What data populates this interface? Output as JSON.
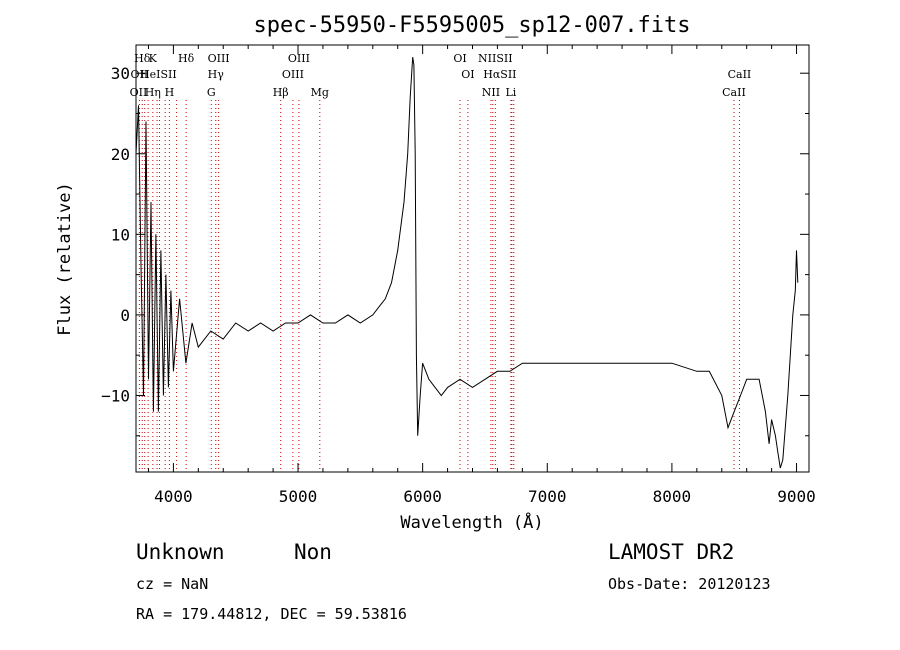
{
  "chart_data": {
    "type": "line",
    "title": "spec-55950-F5595005_sp12-007.fits",
    "xlabel": "Wavelength (Å)",
    "ylabel": "Flux (relative)",
    "xlim": [
      3700,
      9100
    ],
    "ylim": [
      -19.5,
      33.5
    ],
    "x_ticks": [
      4000,
      5000,
      6000,
      7000,
      8000,
      9000
    ],
    "y_ticks": [
      -10,
      0,
      10,
      20,
      30
    ],
    "grid": false,
    "line_color": "#000000",
    "marker_color": "#cc0000",
    "series": [
      {
        "x": [
          3700,
          3720,
          3740,
          3760,
          3780,
          3800,
          3820,
          3840,
          3860,
          3880,
          3900,
          3920,
          3940,
          3960,
          3980,
          4000,
          4050,
          4100,
          4150,
          4200,
          4300,
          4400,
          4500,
          4600,
          4700,
          4800,
          4900,
          5000,
          5100,
          5200,
          5300,
          5400,
          5500,
          5600,
          5650,
          5700,
          5750,
          5800,
          5850,
          5880,
          5900,
          5920,
          5930,
          5940,
          5950,
          5960,
          5980,
          6000,
          6050,
          6100,
          6150,
          6200,
          6300,
          6400,
          6500,
          6600,
          6700,
          6800,
          6900,
          7000,
          7200,
          7400,
          7600,
          7800,
          8000,
          8200,
          8300,
          8400,
          8450,
          8500,
          8550,
          8600,
          8700,
          8750,
          8780,
          8800,
          8830,
          8850,
          8870,
          8890,
          8910,
          8930,
          8950,
          8970,
          8990,
          9000,
          9010
        ],
        "y": [
          20,
          26,
          6,
          -10,
          24,
          -8,
          14,
          -12,
          10,
          -12,
          8,
          -10,
          5,
          -9,
          3,
          -7,
          2,
          -6,
          -1,
          -4,
          -2,
          -3,
          -1,
          -2,
          -1,
          -2,
          -1,
          -1,
          0,
          -1,
          -1,
          0,
          -1,
          0,
          1,
          2,
          4,
          8,
          14,
          20,
          27,
          32,
          31,
          20,
          -5,
          -15,
          -10,
          -6,
          -8,
          -9,
          -10,
          -9,
          -8,
          -9,
          -8,
          -7,
          -7,
          -6,
          -6,
          -6,
          -6,
          -6,
          -6,
          -6,
          -6,
          -7,
          -7,
          -10,
          -14,
          -12,
          -10,
          -8,
          -8,
          -12,
          -16,
          -13,
          -15,
          -17,
          -19,
          -18,
          -14,
          -10,
          -5,
          0,
          3,
          8,
          4
        ]
      }
    ],
    "line_markers": [
      {
        "label": "Hδ",
        "x": 3750,
        "row": 1
      },
      {
        "label": "K",
        "x": 3834,
        "row": 1
      },
      {
        "label": "Hδ",
        "x": 4102,
        "row": 1
      },
      {
        "label": "OIII",
        "x": 4363,
        "row": 1
      },
      {
        "label": "OIII",
        "x": 5007,
        "row": 1
      },
      {
        "label": "OI",
        "x": 6300,
        "row": 1
      },
      {
        "label": "NIISII",
        "x": 6583,
        "row": 1
      },
      {
        "label": "OII",
        "x": 3727,
        "row": 2
      },
      {
        "label": "HeISII",
        "x": 3880,
        "row": 2
      },
      {
        "label": "Hγ",
        "x": 4340,
        "row": 2
      },
      {
        "label": "OIII",
        "x": 4959,
        "row": 2
      },
      {
        "label": "OI",
        "x": 6363,
        "row": 2
      },
      {
        "label": "HαSII",
        "x": 6620,
        "row": 2
      },
      {
        "label": "CaII",
        "x": 8542,
        "row": 2
      },
      {
        "label": "OII",
        "x": 3720,
        "row": 3
      },
      {
        "label": "Hη",
        "x": 3835,
        "row": 3
      },
      {
        "label": "H",
        "x": 3968,
        "row": 3
      },
      {
        "label": "G",
        "x": 4304,
        "row": 3
      },
      {
        "label": "Hβ",
        "x": 4861,
        "row": 3
      },
      {
        "label": "Mg",
        "x": 5175,
        "row": 3
      },
      {
        "label": "NII",
        "x": 6548,
        "row": 3
      },
      {
        "label": "Li",
        "x": 6708,
        "row": 3
      },
      {
        "label": "CaII",
        "x": 8498,
        "row": 3
      }
    ],
    "marker_lines_x": [
      3727,
      3750,
      3770,
      3797,
      3835,
      3869,
      3889,
      3934,
      3968,
      4026,
      4102,
      4304,
      4340,
      4363,
      4861,
      4959,
      5007,
      5175,
      6300,
      6363,
      6548,
      6563,
      6583,
      6708,
      6716,
      6731,
      8498,
      8542
    ]
  },
  "info": {
    "object_class": "Unknown",
    "subclass": "Non",
    "survey": "LAMOST DR2",
    "cz": "cz = NaN",
    "obs_date": "Obs-Date: 20120123",
    "coords": "RA = 179.44812, DEC =  59.53816"
  }
}
